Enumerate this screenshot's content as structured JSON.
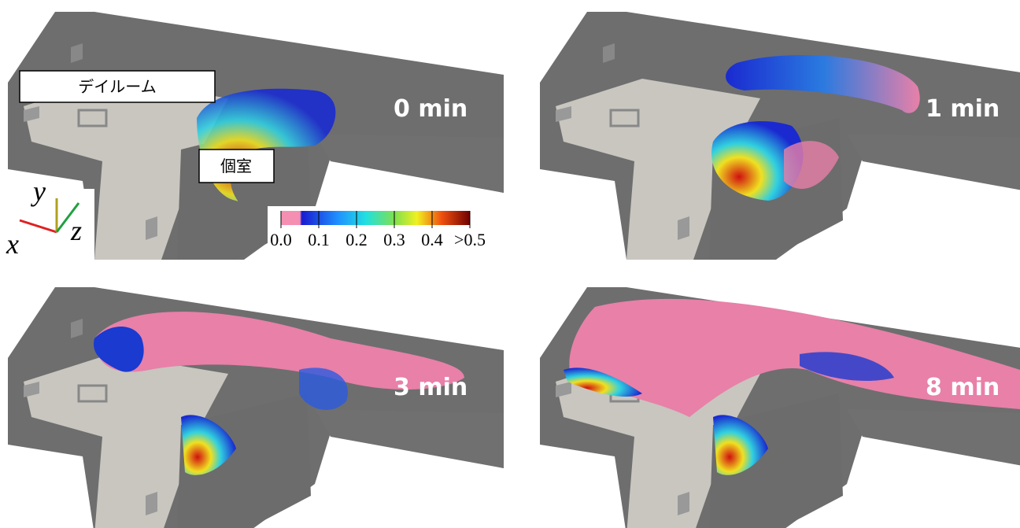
{
  "panels": [
    {
      "label": "0 min"
    },
    {
      "label": "1 min"
    },
    {
      "label": "3 min"
    },
    {
      "label": "8 min"
    }
  ],
  "room_labels": {
    "dayroom": "デイルーム",
    "private_room": "個室"
  },
  "axes": {
    "x": "x",
    "y": "y",
    "z": "z"
  },
  "colorbar": {
    "labels": [
      "0.0",
      "0.1",
      "0.2",
      "0.3",
      "0.4",
      ">0.5"
    ]
  }
}
